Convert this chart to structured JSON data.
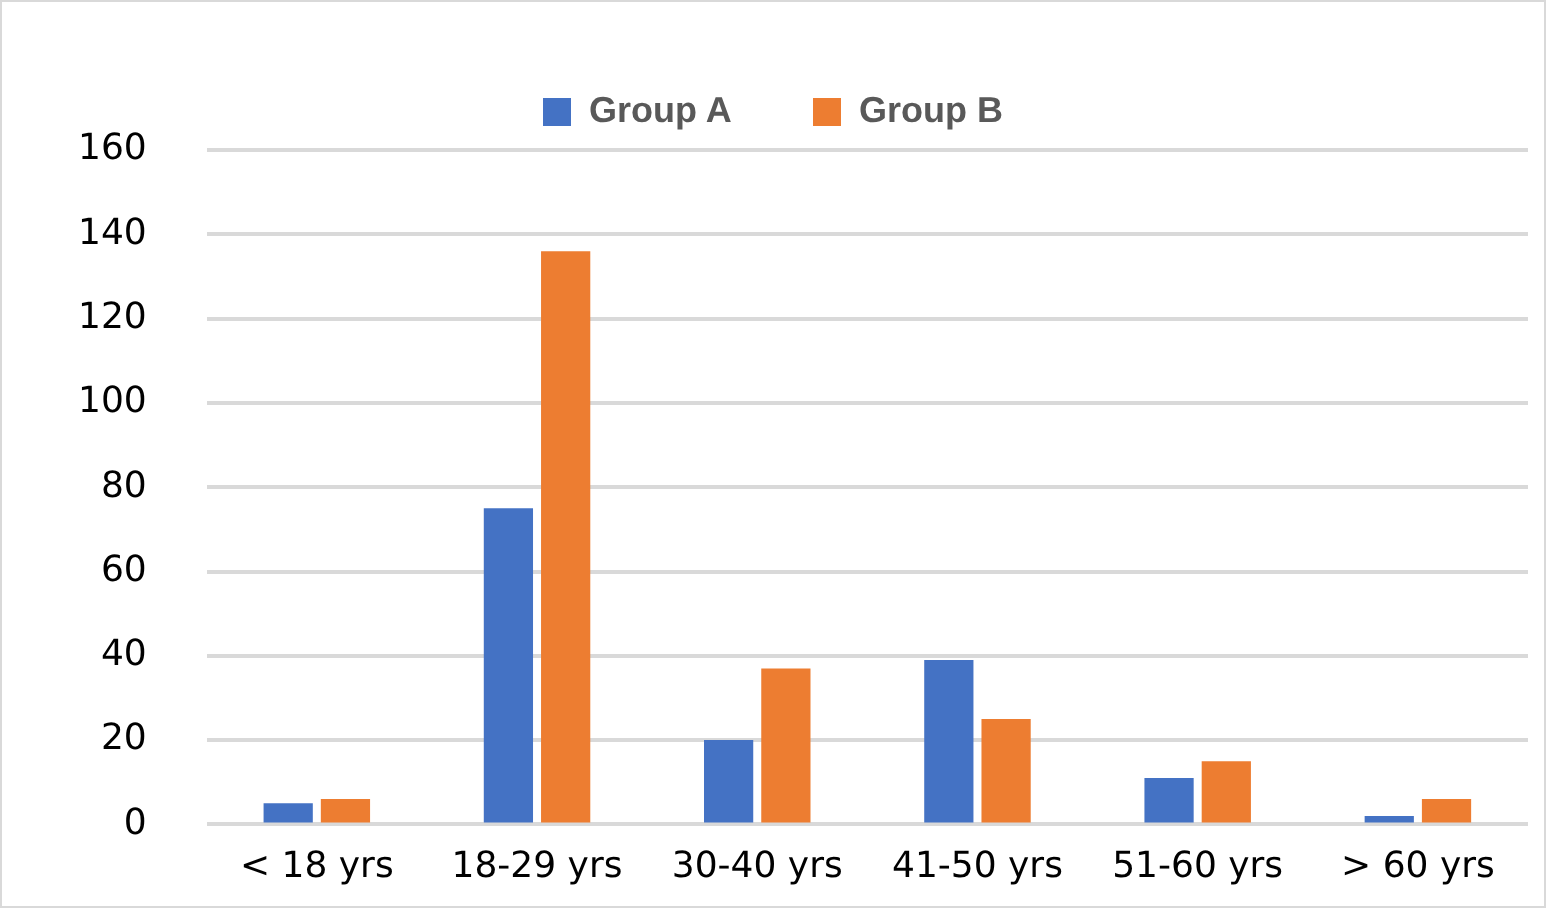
{
  "chart_data": {
    "type": "bar",
    "categories": [
      "< 18 yrs",
      "18-29 yrs",
      "30-40 yrs",
      "41-50 yrs",
      "51-60 yrs",
      "> 60 yrs"
    ],
    "series": [
      {
        "name": "Group A",
        "color": "#4472c4",
        "values": [
          5,
          75,
          20,
          39,
          11,
          2
        ]
      },
      {
        "name": "Group B",
        "color": "#ed7d31",
        "values": [
          6,
          136,
          37,
          25,
          15,
          6
        ]
      }
    ],
    "ylim": [
      0,
      160
    ],
    "yticks": [
      0,
      20,
      40,
      60,
      80,
      100,
      120,
      140,
      160
    ],
    "grid": "y",
    "legend": "top"
  }
}
